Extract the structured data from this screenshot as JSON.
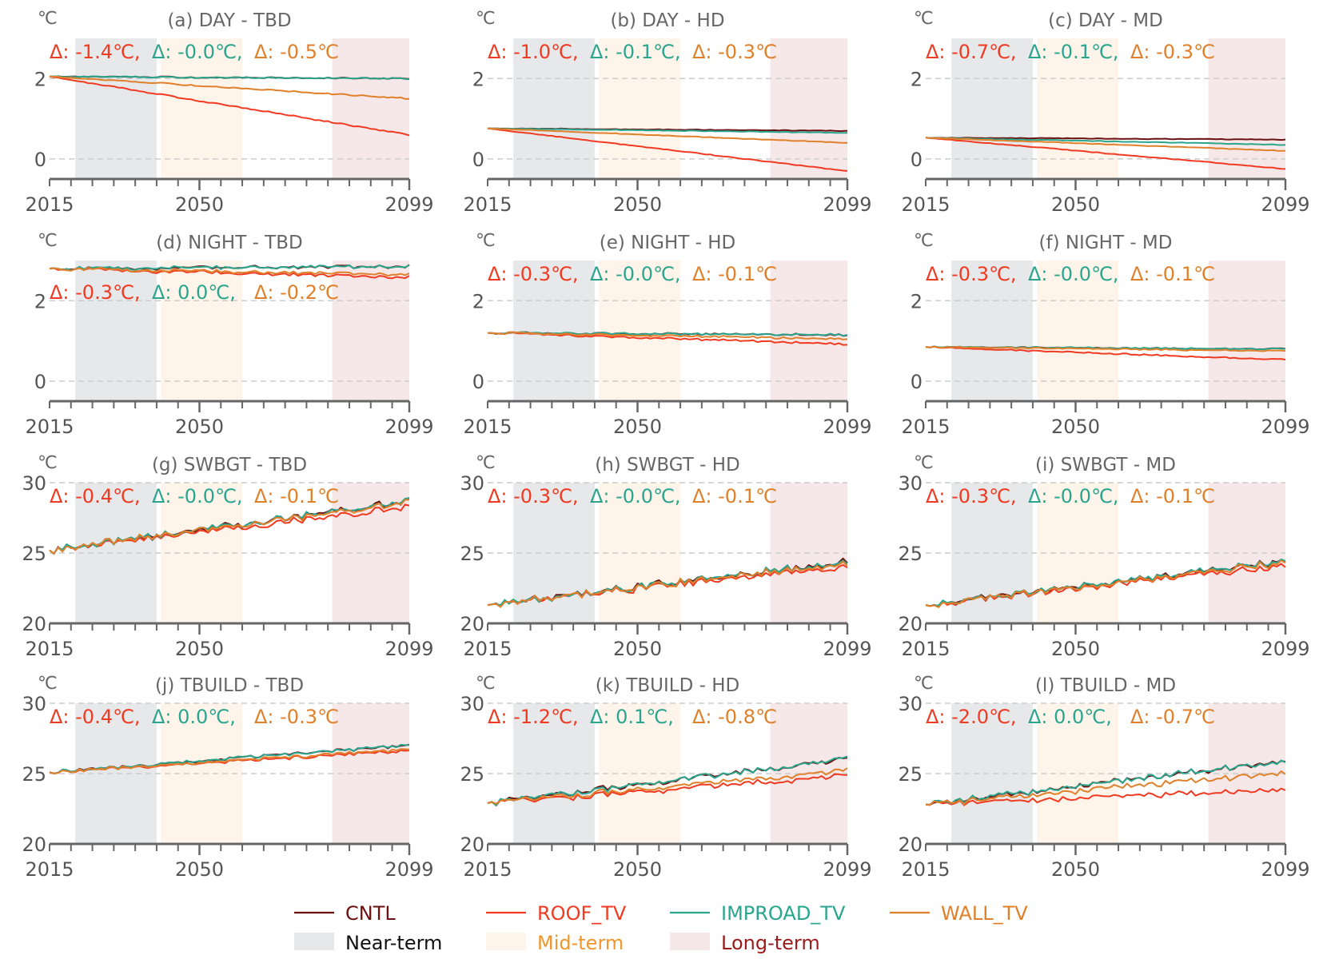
{
  "chart_data": {
    "type": "line",
    "x_range": [
      2015,
      2099
    ],
    "x_ticks": [
      "2015",
      "2050",
      "2099"
    ],
    "periods": [
      {
        "name": "Near-term",
        "start": 2021,
        "end": 2040,
        "color": "#e6e8ea"
      },
      {
        "name": "Mid-term",
        "start": 2041,
        "end": 2060,
        "color": "#fff4ea"
      },
      {
        "name": "Long-term",
        "start": 2081,
        "end": 2099,
        "color": "#f6e8e8"
      }
    ],
    "series_styles": [
      {
        "name": "CNTL",
        "color": "#6b1111"
      },
      {
        "name": "ROOF_TV",
        "color": "#f03a22"
      },
      {
        "name": "IMPROAD_TV",
        "color": "#2aa58e"
      },
      {
        "name": "WALL_TV",
        "color": "#e0802a"
      }
    ],
    "delta_colors": [
      "#f03a22",
      "#2aa58e",
      "#e0802a"
    ],
    "legend": {
      "lines": [
        "CNTL",
        "ROOF_TV",
        "IMPROAD_TV",
        "WALL_TV"
      ],
      "periods": [
        "Near-term",
        "Mid-term",
        "Long-term"
      ],
      "period_text_colors": [
        "#111111",
        "#f0962c",
        "#9b1a1a"
      ]
    },
    "panels": [
      {
        "title": "(a) DAY - TBD",
        "unit": "℃",
        "ylim": [
          -0.5,
          3
        ],
        "yticks": [
          0,
          2
        ],
        "deltas": [
          "Δ: -1.4℃,",
          "Δ: -0.0℃,",
          "Δ: -0.5℃"
        ],
        "delta_row": "top",
        "series": [
          {
            "name": "CNTL",
            "start": 2.05,
            "end": 2.0,
            "noise": 0.02
          },
          {
            "name": "ROOF_TV",
            "start": 2.05,
            "end": 0.6,
            "noise": 0.02
          },
          {
            "name": "IMPROAD_TV",
            "start": 2.05,
            "end": 2.0,
            "noise": 0.02
          },
          {
            "name": "WALL_TV",
            "start": 2.05,
            "end": 1.5,
            "noise": 0.02
          }
        ]
      },
      {
        "title": "(b) DAY - HD",
        "unit": "℃",
        "ylim": [
          -0.5,
          3
        ],
        "yticks": [
          0,
          2
        ],
        "deltas": [
          "Δ: -1.0℃,",
          "Δ: -0.1℃,",
          "Δ: -0.3℃"
        ],
        "delta_row": "top",
        "series": [
          {
            "name": "CNTL",
            "start": 0.76,
            "end": 0.7,
            "noise": 0.01
          },
          {
            "name": "ROOF_TV",
            "start": 0.76,
            "end": -0.3,
            "noise": 0.01
          },
          {
            "name": "IMPROAD_TV",
            "start": 0.76,
            "end": 0.65,
            "noise": 0.01
          },
          {
            "name": "WALL_TV",
            "start": 0.76,
            "end": 0.4,
            "noise": 0.01
          }
        ]
      },
      {
        "title": "(c) DAY - MD",
        "unit": "℃",
        "ylim": [
          -0.5,
          3
        ],
        "yticks": [
          0,
          2
        ],
        "deltas": [
          "Δ: -0.7℃,",
          "Δ: -0.1℃,",
          "Δ: -0.3℃"
        ],
        "delta_row": "top",
        "series": [
          {
            "name": "CNTL",
            "start": 0.53,
            "end": 0.48,
            "noise": 0.01
          },
          {
            "name": "ROOF_TV",
            "start": 0.53,
            "end": -0.25,
            "noise": 0.01
          },
          {
            "name": "IMPROAD_TV",
            "start": 0.53,
            "end": 0.35,
            "noise": 0.01
          },
          {
            "name": "WALL_TV",
            "start": 0.53,
            "end": 0.2,
            "noise": 0.01
          }
        ]
      },
      {
        "title": "(d) NIGHT - TBD",
        "unit": "℃",
        "ylim": [
          -0.5,
          3
        ],
        "yticks": [
          0,
          2
        ],
        "deltas": [
          "Δ: -0.3℃,",
          "Δ: 0.0℃,",
          "Δ: -0.2℃"
        ],
        "delta_row": "middle",
        "series": [
          {
            "name": "CNTL",
            "start": 2.8,
            "end": 2.85,
            "noise": 0.05
          },
          {
            "name": "ROOF_TV",
            "start": 2.8,
            "end": 2.58,
            "noise": 0.05
          },
          {
            "name": "IMPROAD_TV",
            "start": 2.8,
            "end": 2.85,
            "noise": 0.05
          },
          {
            "name": "WALL_TV",
            "start": 2.8,
            "end": 2.65,
            "noise": 0.05
          }
        ]
      },
      {
        "title": "(e) NIGHT - HD",
        "unit": "℃",
        "ylim": [
          -0.5,
          3
        ],
        "yticks": [
          0,
          2
        ],
        "deltas": [
          "Δ: -0.3℃,",
          "Δ: -0.0℃,",
          "Δ: -0.1℃"
        ],
        "delta_row": "top",
        "series": [
          {
            "name": "CNTL",
            "start": 1.2,
            "end": 1.15,
            "noise": 0.03
          },
          {
            "name": "ROOF_TV",
            "start": 1.2,
            "end": 0.92,
            "noise": 0.03
          },
          {
            "name": "IMPROAD_TV",
            "start": 1.2,
            "end": 1.15,
            "noise": 0.03
          },
          {
            "name": "WALL_TV",
            "start": 1.2,
            "end": 1.05,
            "noise": 0.03
          }
        ]
      },
      {
        "title": "(f) NIGHT - MD",
        "unit": "℃",
        "ylim": [
          -0.5,
          3
        ],
        "yticks": [
          0,
          2
        ],
        "deltas": [
          "Δ: -0.3℃,",
          "Δ: -0.0℃,",
          "Δ: -0.1℃"
        ],
        "delta_row": "top",
        "series": [
          {
            "name": "CNTL",
            "start": 0.85,
            "end": 0.8,
            "noise": 0.02
          },
          {
            "name": "ROOF_TV",
            "start": 0.85,
            "end": 0.53,
            "noise": 0.02
          },
          {
            "name": "IMPROAD_TV",
            "start": 0.85,
            "end": 0.8,
            "noise": 0.02
          },
          {
            "name": "WALL_TV",
            "start": 0.85,
            "end": 0.75,
            "noise": 0.02
          }
        ]
      },
      {
        "title": "(g) SWBGT - TBD",
        "unit": "℃",
        "ylim": [
          20,
          30
        ],
        "yticks": [
          20,
          25,
          30
        ],
        "deltas": [
          "Δ: -0.4℃,",
          "Δ: -0.0℃,",
          "Δ: -0.1℃"
        ],
        "delta_row": "top",
        "series": [
          {
            "name": "CNTL",
            "start": 25.2,
            "end": 28.7,
            "noise": 0.3
          },
          {
            "name": "ROOF_TV",
            "start": 25.2,
            "end": 28.3,
            "noise": 0.3
          },
          {
            "name": "IMPROAD_TV",
            "start": 25.2,
            "end": 28.7,
            "noise": 0.3
          },
          {
            "name": "WALL_TV",
            "start": 25.2,
            "end": 28.6,
            "noise": 0.3
          }
        ]
      },
      {
        "title": "(h) SWBGT - HD",
        "unit": "℃",
        "ylim": [
          20,
          30
        ],
        "yticks": [
          20,
          25,
          30
        ],
        "deltas": [
          "Δ: -0.3℃,",
          "Δ: -0.0℃,",
          "Δ: -0.1℃"
        ],
        "delta_row": "top",
        "series": [
          {
            "name": "CNTL",
            "start": 21.3,
            "end": 24.4,
            "noise": 0.3
          },
          {
            "name": "ROOF_TV",
            "start": 21.3,
            "end": 24.1,
            "noise": 0.3
          },
          {
            "name": "IMPROAD_TV",
            "start": 21.3,
            "end": 24.4,
            "noise": 0.3
          },
          {
            "name": "WALL_TV",
            "start": 21.3,
            "end": 24.3,
            "noise": 0.3
          }
        ]
      },
      {
        "title": "(i) SWBGT - MD",
        "unit": "℃",
        "ylim": [
          20,
          30
        ],
        "yticks": [
          20,
          25,
          30
        ],
        "deltas": [
          "Δ: -0.3℃,",
          "Δ: -0.0℃,",
          "Δ: -0.1℃"
        ],
        "delta_row": "top",
        "series": [
          {
            "name": "CNTL",
            "start": 21.3,
            "end": 24.4,
            "noise": 0.3
          },
          {
            "name": "ROOF_TV",
            "start": 21.3,
            "end": 24.1,
            "noise": 0.3
          },
          {
            "name": "IMPROAD_TV",
            "start": 21.3,
            "end": 24.4,
            "noise": 0.3
          },
          {
            "name": "WALL_TV",
            "start": 21.3,
            "end": 24.3,
            "noise": 0.3
          }
        ]
      },
      {
        "title": "(j) TBUILD - TBD",
        "unit": "℃",
        "ylim": [
          20,
          30
        ],
        "yticks": [
          20,
          25,
          30
        ],
        "deltas": [
          "Δ: -0.4℃,",
          "Δ: 0.0℃,",
          "Δ: -0.3℃"
        ],
        "delta_row": "top",
        "series": [
          {
            "name": "CNTL",
            "start": 25.1,
            "end": 27.0,
            "noise": 0.15
          },
          {
            "name": "ROOF_TV",
            "start": 25.1,
            "end": 26.6,
            "noise": 0.15
          },
          {
            "name": "IMPROAD_TV",
            "start": 25.1,
            "end": 27.0,
            "noise": 0.15
          },
          {
            "name": "WALL_TV",
            "start": 25.1,
            "end": 26.7,
            "noise": 0.15
          }
        ]
      },
      {
        "title": "(k) TBUILD - HD",
        "unit": "℃",
        "ylim": [
          20,
          30
        ],
        "yticks": [
          20,
          25,
          30
        ],
        "deltas": [
          "Δ: -1.2℃,",
          "Δ: 0.1℃,",
          "Δ: -0.8℃"
        ],
        "delta_row": "top",
        "series": [
          {
            "name": "CNTL",
            "start": 22.9,
            "end": 26.0,
            "noise": 0.25
          },
          {
            "name": "ROOF_TV",
            "start": 22.9,
            "end": 24.8,
            "noise": 0.25
          },
          {
            "name": "IMPROAD_TV",
            "start": 22.9,
            "end": 26.0,
            "noise": 0.25
          },
          {
            "name": "WALL_TV",
            "start": 22.9,
            "end": 25.2,
            "noise": 0.25
          }
        ]
      },
      {
        "title": "(l) TBUILD - MD",
        "unit": "℃",
        "ylim": [
          20,
          30
        ],
        "yticks": [
          20,
          25,
          30
        ],
        "deltas": [
          "Δ: -2.0℃,",
          "Δ: 0.0℃,",
          "Δ: -0.7℃"
        ],
        "delta_row": "top",
        "series": [
          {
            "name": "CNTL",
            "start": 22.8,
            "end": 25.9,
            "noise": 0.25
          },
          {
            "name": "ROOF_TV",
            "start": 22.8,
            "end": 23.9,
            "noise": 0.25
          },
          {
            "name": "IMPROAD_TV",
            "start": 22.8,
            "end": 25.9,
            "noise": 0.25
          },
          {
            "name": "WALL_TV",
            "start": 22.8,
            "end": 25.1,
            "noise": 0.25
          }
        ]
      }
    ]
  }
}
